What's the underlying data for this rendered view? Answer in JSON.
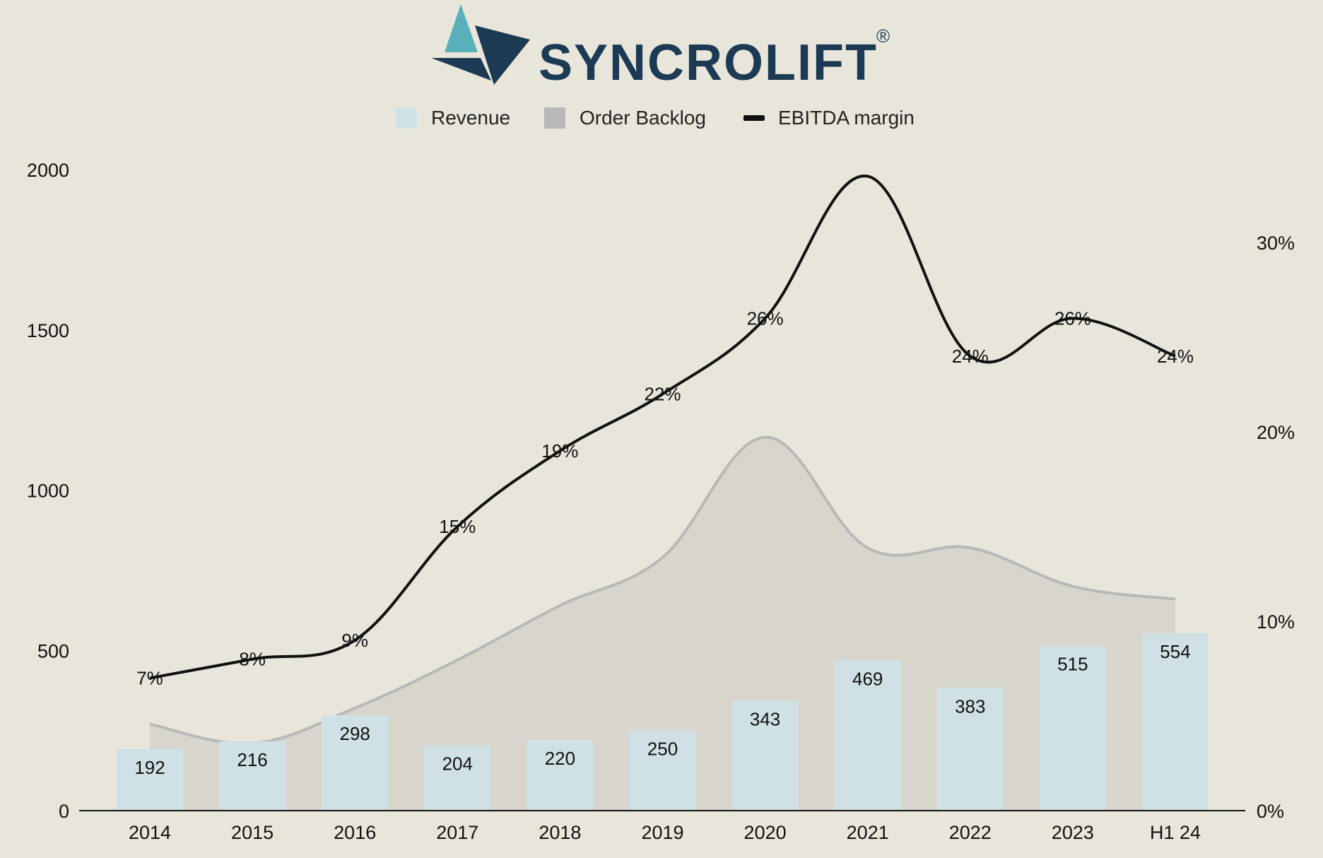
{
  "brand": {
    "name": "SYNCROLIFT",
    "registered": "®",
    "colors": {
      "navy": "#1d3a55",
      "teal": "#5ab0ba"
    }
  },
  "legend": [
    {
      "label": "Revenue",
      "color": "#d0e1e5"
    },
    {
      "label": "Order Backlog",
      "color": "#b8b8b8"
    },
    {
      "label": "EBITDA margin",
      "color": "#111111"
    }
  ],
  "chart_data": {
    "type": "bar",
    "categories": [
      "2014",
      "2015",
      "2016",
      "2017",
      "2018",
      "2019",
      "2020",
      "2021",
      "2022",
      "2023",
      "H1 24"
    ],
    "series": [
      {
        "name": "Revenue",
        "type": "bar",
        "axis": "left",
        "values": [
          192,
          216,
          298,
          204,
          220,
          250,
          343,
          469,
          383,
          515,
          554
        ]
      },
      {
        "name": "Order Backlog",
        "type": "area",
        "axis": "left",
        "values": [
          270,
          210,
          320,
          470,
          640,
          790,
          1165,
          820,
          820,
          700,
          660
        ]
      },
      {
        "name": "EBITDA margin",
        "type": "line",
        "axis": "right",
        "values": [
          7,
          8,
          9,
          15,
          19,
          22,
          26,
          33.5,
          24,
          26,
          24
        ]
      }
    ],
    "data_labels": {
      "Revenue": [
        "192",
        "216",
        "298",
        "204",
        "220",
        "250",
        "343",
        "469",
        "383",
        "515",
        "554"
      ],
      "EBITDA margin": [
        "7%",
        "8%",
        "9%",
        "15%",
        "19%",
        "22%",
        "26%",
        "",
        "24%",
        "26%",
        "24%"
      ]
    },
    "y_left": {
      "min": 0,
      "max": 2000,
      "ticks": [
        "0",
        "500",
        "1000",
        "1500",
        "2000"
      ]
    },
    "y_right": {
      "min": 0,
      "max": 33.85,
      "ticks": [
        "0%",
        "10%",
        "20%",
        "30%"
      ]
    },
    "legend_position": "top-center"
  }
}
